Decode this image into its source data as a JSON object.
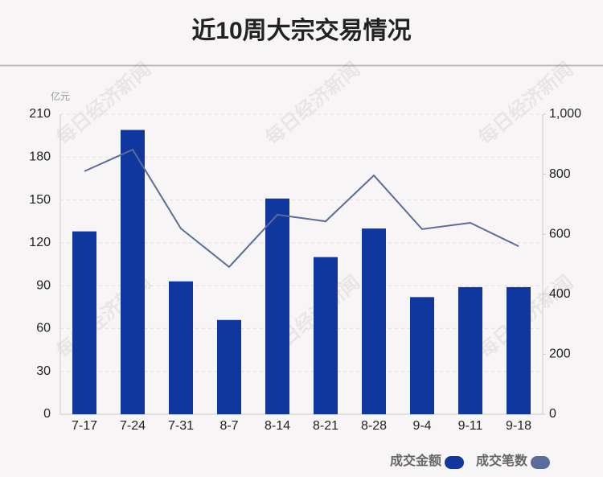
{
  "chart_data": {
    "type": "bar_line",
    "title": "近10周大宗交易情况",
    "y_unit": "亿元",
    "watermark": "每日经济新闻",
    "categories": [
      "7-17",
      "7-24",
      "7-31",
      "8-7",
      "8-14",
      "8-21",
      "8-28",
      "9-4",
      "9-11",
      "9-18"
    ],
    "series": [
      {
        "name": "成交金额",
        "type": "bar",
        "color": "#0f379e",
        "values": [
          128,
          199,
          93,
          66,
          151,
          110,
          130,
          82,
          89,
          89
        ]
      },
      {
        "name": "成交笔数",
        "type": "line",
        "axis": "y2",
        "color": "#5a6d99",
        "values": [
          810,
          882,
          619,
          491,
          665,
          643,
          796,
          617,
          638,
          560
        ]
      }
    ],
    "ylim": [
      0,
      210
    ],
    "yticks": [
      0,
      30,
      60,
      90,
      120,
      150,
      180,
      210
    ],
    "y2lim": [
      0,
      1000
    ],
    "y2ticks": [
      0,
      200,
      400,
      600,
      800,
      {
        "value": 1000,
        "label": "1,000"
      }
    ],
    "grid": true
  }
}
